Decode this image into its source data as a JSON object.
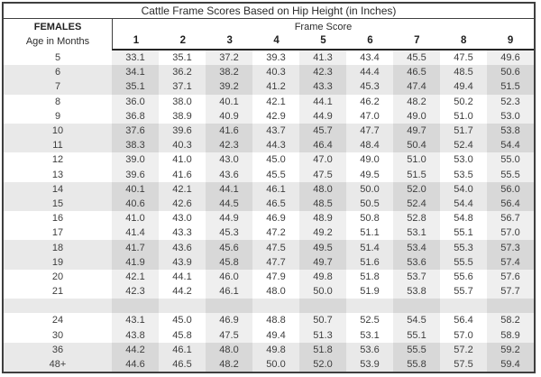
{
  "title": "Cattle Frame Scores Based on Hip Height (in Inches)",
  "header": {
    "females_label": "FEMALES",
    "age_label": "Age in Months",
    "group_label": "Frame Score",
    "score_columns": [
      "1",
      "2",
      "3",
      "4",
      "5",
      "6",
      "7",
      "8",
      "9"
    ]
  },
  "colors": {
    "border": "#3f3f3f",
    "shaded_row": "#e9e9e9",
    "band_on_white_row": "#efefef",
    "band_on_shaded_row": "#d8d8d8",
    "text": "#3d3d3d"
  },
  "rows": [
    {
      "age": "5",
      "shaded": false,
      "values": [
        "33.1",
        "35.1",
        "37.2",
        "39.3",
        "41.3",
        "43.4",
        "45.5",
        "47.5",
        "49.6"
      ]
    },
    {
      "age": "6",
      "shaded": true,
      "values": [
        "34.1",
        "36.2",
        "38.2",
        "40.3",
        "42.3",
        "44.4",
        "46.5",
        "48.5",
        "50.6"
      ]
    },
    {
      "age": "7",
      "shaded": true,
      "values": [
        "35.1",
        "37.1",
        "39.2",
        "41.2",
        "43.3",
        "45.3",
        "47.4",
        "49.4",
        "51.5"
      ]
    },
    {
      "age": "8",
      "shaded": false,
      "values": [
        "36.0",
        "38.0",
        "40.1",
        "42.1",
        "44.1",
        "46.2",
        "48.2",
        "50.2",
        "52.3"
      ]
    },
    {
      "age": "9",
      "shaded": false,
      "values": [
        "36.8",
        "38.9",
        "40.9",
        "42.9",
        "44.9",
        "47.0",
        "49.0",
        "51.0",
        "53.0"
      ]
    },
    {
      "age": "10",
      "shaded": true,
      "values": [
        "37.6",
        "39.6",
        "41.6",
        "43.7",
        "45.7",
        "47.7",
        "49.7",
        "51.7",
        "53.8"
      ]
    },
    {
      "age": "11",
      "shaded": true,
      "values": [
        "38.3",
        "40.3",
        "42.3",
        "44.3",
        "46.4",
        "48.4",
        "50.4",
        "52.4",
        "54.4"
      ]
    },
    {
      "age": "12",
      "shaded": false,
      "values": [
        "39.0",
        "41.0",
        "43.0",
        "45.0",
        "47.0",
        "49.0",
        "51.0",
        "53.0",
        "55.0"
      ]
    },
    {
      "age": "13",
      "shaded": false,
      "values": [
        "39.6",
        "41.6",
        "43.6",
        "45.5",
        "47.5",
        "49.5",
        "51.5",
        "53.5",
        "55.5"
      ]
    },
    {
      "age": "14",
      "shaded": true,
      "values": [
        "40.1",
        "42.1",
        "44.1",
        "46.1",
        "48.0",
        "50.0",
        "52.0",
        "54.0",
        "56.0"
      ]
    },
    {
      "age": "15",
      "shaded": true,
      "values": [
        "40.6",
        "42.6",
        "44.5",
        "46.5",
        "48.5",
        "50.5",
        "52.4",
        "54.4",
        "56.4"
      ]
    },
    {
      "age": "16",
      "shaded": false,
      "values": [
        "41.0",
        "43.0",
        "44.9",
        "46.9",
        "48.9",
        "50.8",
        "52.8",
        "54.8",
        "56.7"
      ]
    },
    {
      "age": "17",
      "shaded": false,
      "values": [
        "41.4",
        "43.3",
        "45.3",
        "47.2",
        "49.2",
        "51.1",
        "53.1",
        "55.1",
        "57.0"
      ]
    },
    {
      "age": "18",
      "shaded": true,
      "values": [
        "41.7",
        "43.6",
        "45.6",
        "47.5",
        "49.5",
        "51.4",
        "53.4",
        "55.3",
        "57.3"
      ]
    },
    {
      "age": "19",
      "shaded": true,
      "values": [
        "41.9",
        "43.9",
        "45.8",
        "47.7",
        "49.7",
        "51.6",
        "53.6",
        "55.5",
        "57.4"
      ]
    },
    {
      "age": "20",
      "shaded": false,
      "values": [
        "42.1",
        "44.1",
        "46.0",
        "47.9",
        "49.8",
        "51.8",
        "53.7",
        "55.6",
        "57.6"
      ]
    },
    {
      "age": "21",
      "shaded": false,
      "values": [
        "42.3",
        "44.2",
        "46.1",
        "48.0",
        "50.0",
        "51.9",
        "53.8",
        "55.7",
        "57.7"
      ]
    },
    {
      "age": "",
      "shaded": true,
      "values": [
        "",
        "",
        "",
        "",
        "",
        "",
        "",
        "",
        ""
      ]
    },
    {
      "age": "24",
      "shaded": false,
      "values": [
        "43.1",
        "45.0",
        "46.9",
        "48.8",
        "50.7",
        "52.5",
        "54.5",
        "56.4",
        "58.2"
      ]
    },
    {
      "age": "30",
      "shaded": false,
      "values": [
        "43.8",
        "45.8",
        "47.5",
        "49.4",
        "51.3",
        "53.1",
        "55.1",
        "57.0",
        "58.9"
      ]
    },
    {
      "age": "36",
      "shaded": true,
      "values": [
        "44.2",
        "46.1",
        "48.0",
        "49.8",
        "51.8",
        "53.6",
        "55.5",
        "57.2",
        "59.2"
      ]
    },
    {
      "age": "48+",
      "shaded": true,
      "values": [
        "44.6",
        "46.5",
        "48.2",
        "50.0",
        "52.0",
        "53.9",
        "55.8",
        "57.5",
        "59.4"
      ]
    }
  ]
}
